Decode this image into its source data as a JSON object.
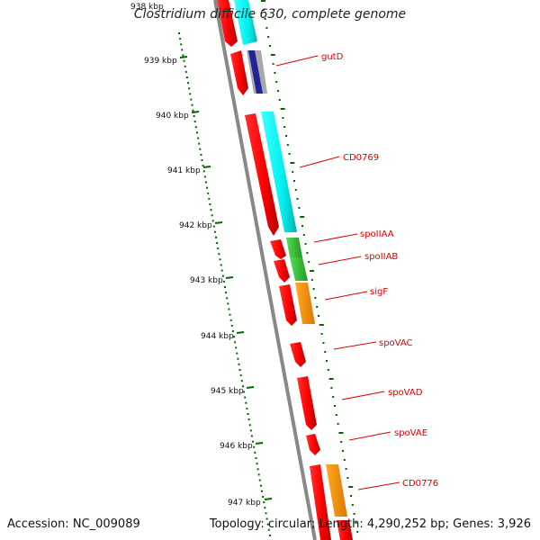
{
  "title": "Clostridium difficile 630, complete genome",
  "accession": "Accession: NC_009089",
  "topology": "Topology: circular; Length: 4,290,252 bp; Genes: 3,926",
  "ticks": [
    "938 kbp",
    "939 kbp",
    "940 kbp",
    "941 kbp",
    "942 kbp",
    "943 kbp",
    "944 kbp",
    "945 kbp",
    "946 kbp",
    "947 kbp"
  ],
  "gene_labels": [
    "gutD",
    "CD0769",
    "spoIIAA",
    "spoIIAB",
    "sigF",
    "spoVAC",
    "spoVAD",
    "spoVAE",
    "CD0776"
  ],
  "colors": {
    "cds": "#ff0000",
    "cyan": "#00ffff",
    "grey": "#a0a0a0",
    "blue": "#1a1aa0",
    "green": "#33cc33",
    "orange": "#ff9900",
    "tick": "#006600",
    "label": "#dd0000",
    "backbone": "#888888"
  }
}
